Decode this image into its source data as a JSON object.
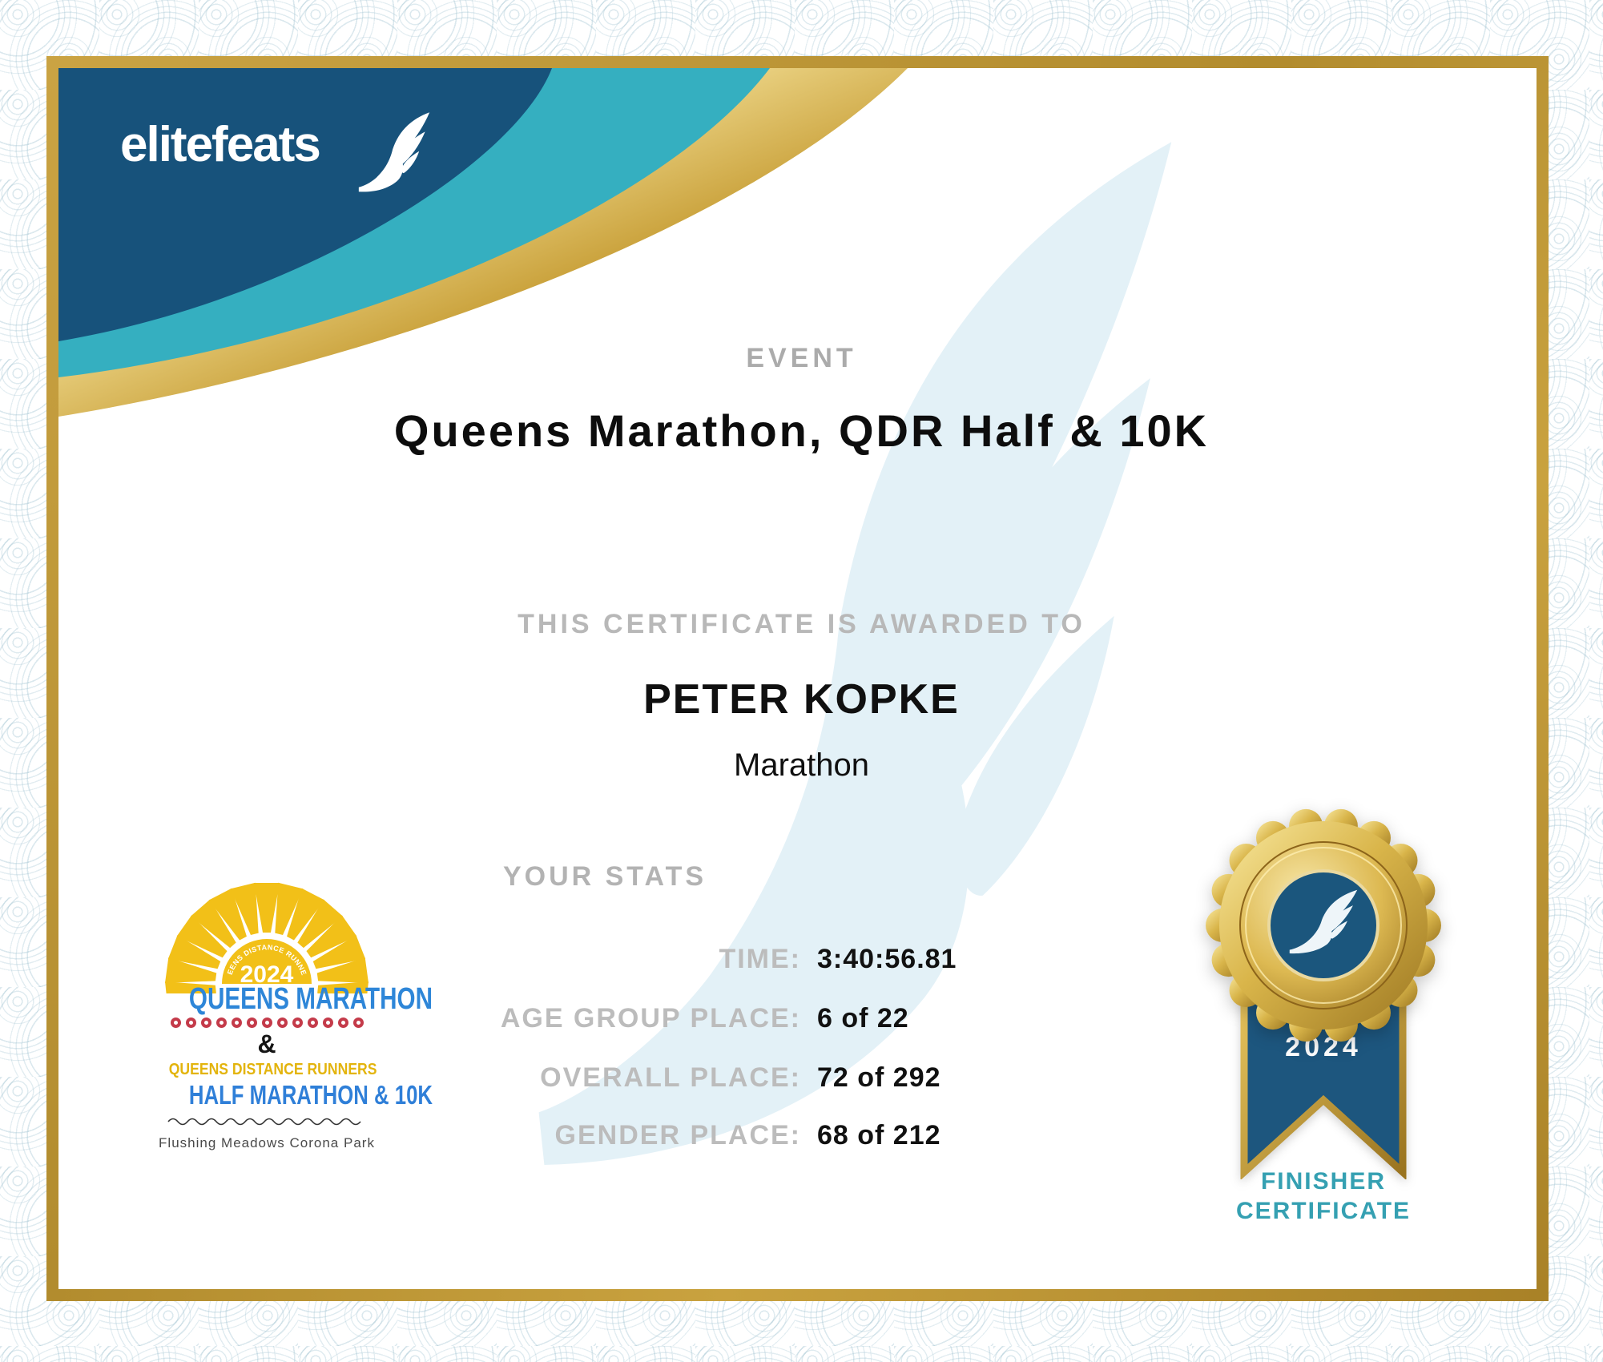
{
  "brand": {
    "logo_text": "elitefeats"
  },
  "header": {
    "eyebrow": "EVENT",
    "event_title": "Queens Marathon, QDR Half & 10K"
  },
  "award": {
    "intro": "THIS CERTIFICATE IS AWARDED TO",
    "recipient": "PETER KOPKE",
    "division": "Marathon"
  },
  "stats": {
    "heading": "YOUR STATS",
    "rows": [
      {
        "label": "TIME:",
        "value": "3:40:56.81"
      },
      {
        "label": "AGE GROUP PLACE:",
        "value": "6 of 22"
      },
      {
        "label": "OVERALL PLACE:",
        "value": "72 of 292"
      },
      {
        "label": "GENDER PLACE:",
        "value": "68 of 212"
      }
    ]
  },
  "event_logo": {
    "year": "2024",
    "arc_text": "QUEENS DISTANCE RUNNERS",
    "title": "QUEENS MARATHON",
    "ampersand": "&",
    "subtitle": "QUEENS DISTANCE RUNNERS",
    "race": "HALF MARATHON & 10K",
    "location": "Flushing Meadows Corona Park",
    "dot_count": 13
  },
  "badge": {
    "year": "2024",
    "line1": "FINISHER",
    "line2": "CERTIFICATE"
  },
  "colors": {
    "navy_swoosh": "#17527B",
    "teal_swoosh": "#35AFC0",
    "frame_gold": "#BD9733",
    "gold_light": "#F3DF96",
    "gold_dark": "#8F6B1C",
    "heading_gray": "#ABABAB",
    "label_gray": "#BCBCBC",
    "text_black": "#111111",
    "finisher_teal": "#35A0B2",
    "ribbon_navy": "#1D567E",
    "medal_center_blue": "#1B567D",
    "watermark_blue": "#E3F1F7",
    "qm_blue": "#2E86D8",
    "race_blue": "#2F7FD8",
    "sun_yellow": "#F2C018",
    "qdr_yellow": "#E3B40D",
    "dot_red": "#C43B4A",
    "border_pattern": "#CFE0E8"
  }
}
